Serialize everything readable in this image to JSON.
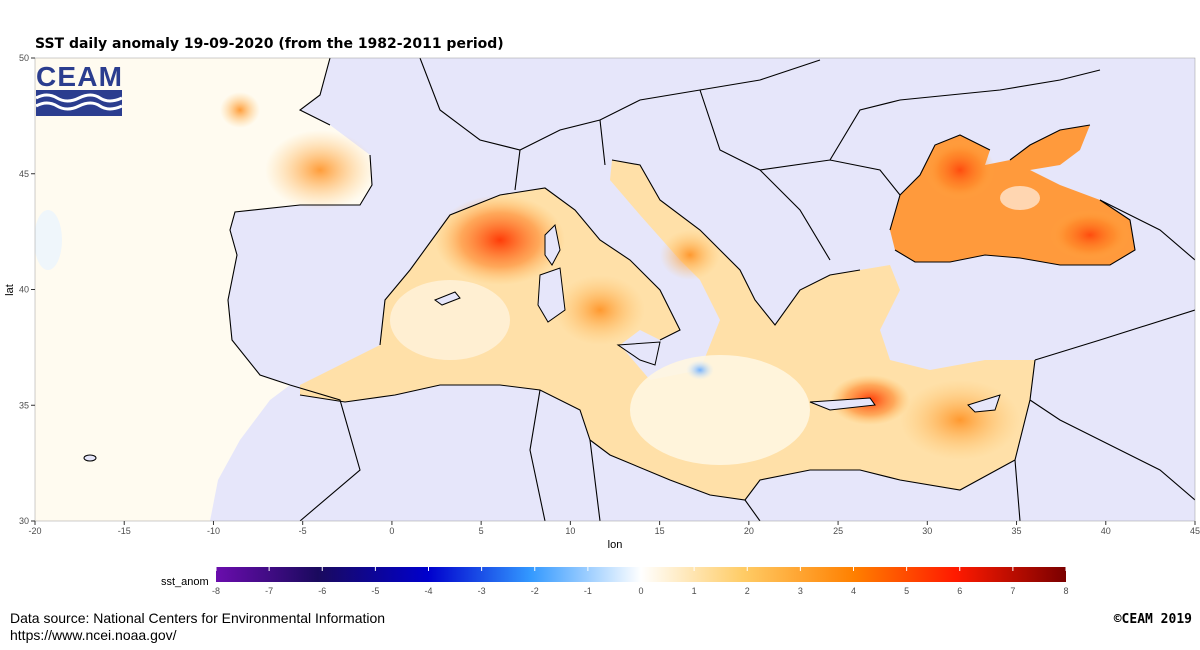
{
  "title": "SST daily anomaly 19-09-2020 (from the 1982-2011 period)",
  "logo": {
    "text": "CEAM",
    "color": "#2b3d8f"
  },
  "axes": {
    "x_label": "lon",
    "y_label": "lat",
    "x_ticks": [
      "-20",
      "-15",
      "-10",
      "-5",
      "0",
      "5",
      "10",
      "15",
      "20",
      "25",
      "30",
      "35",
      "40",
      "45"
    ],
    "y_ticks": [
      "50",
      "45",
      "40",
      "35",
      "30"
    ]
  },
  "legend": {
    "title": "sst_anom",
    "ticks": [
      "-8",
      "-7",
      "-6",
      "-5",
      "-4",
      "-3",
      "-2",
      "-1",
      "0",
      "1",
      "2",
      "3",
      "4",
      "5",
      "6",
      "7",
      "8"
    ],
    "range": [
      -8,
      8
    ],
    "colors": [
      "#6a0dad",
      "#0000cd",
      "#3399ff",
      "#ffffff",
      "#ffcc66",
      "#ff6600",
      "#ff0000",
      "#7a0000"
    ]
  },
  "source": {
    "line1": "Data source: National Centers for Environmental Information",
    "line2": "https://www.ncei.noaa.gov/"
  },
  "copyright": "©CEAM 2019",
  "colors": {
    "land": "#e6e6fa",
    "background": "#ffffff"
  }
}
